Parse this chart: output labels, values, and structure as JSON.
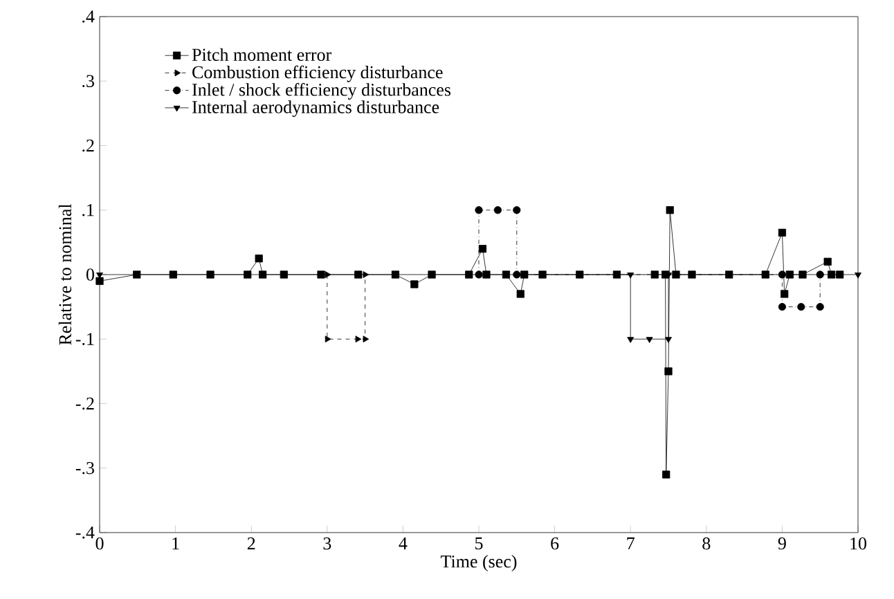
{
  "chart_data": {
    "type": "line",
    "xlabel": "Time (sec)",
    "ylabel": "Relative to nominal",
    "xlim": [
      0,
      10
    ],
    "xticks": [
      0,
      1,
      2,
      3,
      4,
      5,
      6,
      7,
      8,
      9,
      10
    ],
    "ylim": [
      -0.4,
      0.4
    ],
    "yticks": [
      {
        "value": -0.4,
        "label": "-.4"
      },
      {
        "value": -0.3,
        "label": "-.3"
      },
      {
        "value": -0.2,
        "label": "-.2"
      },
      {
        "value": -0.1,
        "label": "-.1"
      },
      0,
      {
        "value": 0.1,
        "label": ".1"
      },
      {
        "value": 0.2,
        "label": ".2"
      },
      {
        "value": 0.3,
        "label": ".3"
      },
      {
        "value": 0.4,
        "label": ".4"
      }
    ],
    "legend": "top left",
    "grid": false,
    "series": [
      {
        "name": "Pitch moment error",
        "color": "#000000",
        "marker": "square",
        "line_style": "solid",
        "x": [
          0,
          0.49,
          0.97,
          1.46,
          1.95,
          2.1,
          2.15,
          2.43,
          2.92,
          3.41,
          3.9,
          4.15,
          4.38,
          4.87,
          5.05,
          5.1,
          5.36,
          5.55,
          5.6,
          5.84,
          6.33,
          6.82,
          7.32,
          7.46,
          7.47,
          7.5,
          7.52,
          7.6,
          7.81,
          8.3,
          8.78,
          9.0,
          9.03,
          9.1,
          9.27,
          9.6,
          9.65,
          9.76
        ],
        "values": [
          -0.01,
          0,
          0,
          0,
          0,
          0.025,
          0,
          0,
          0,
          0,
          0,
          -0.015,
          0,
          0,
          0.04,
          0,
          0,
          -0.03,
          0,
          0,
          0,
          0,
          0,
          0,
          -0.31,
          -0.15,
          0.1,
          0,
          0,
          0,
          0,
          0.065,
          -0.03,
          0,
          0,
          0.02,
          0,
          0
        ]
      },
      {
        "name": "Combustion efficiency disturbance",
        "color": "#000000",
        "marker": "triangle",
        "line_style": "dashed",
        "x": [
          3,
          3,
          3.4,
          3.5,
          3.5
        ],
        "values": [
          0,
          -0.1,
          -0.1,
          -0.1,
          0
        ]
      },
      {
        "name": "Inlet  / shock efficiency disturbances",
        "color": "#000000",
        "marker": "circle",
        "line_style": "dashdot",
        "x": [
          5,
          5,
          5.25,
          5.5,
          5.5,
          9,
          9,
          9.25,
          9.5,
          9.5
        ],
        "values": [
          0,
          0.1,
          0.1,
          0.1,
          0,
          0,
          -0.05,
          -0.05,
          -0.05,
          0
        ]
      },
      {
        "name": "Internal aerodynamics disturbance",
        "color": "#000000",
        "marker": "triangle down",
        "line_style": "solid",
        "x": [
          0,
          7,
          7,
          7.25,
          7.5,
          7.5,
          10
        ],
        "values": [
          0,
          0,
          -0.1,
          -0.1,
          -0.1,
          0,
          0
        ]
      }
    ]
  }
}
